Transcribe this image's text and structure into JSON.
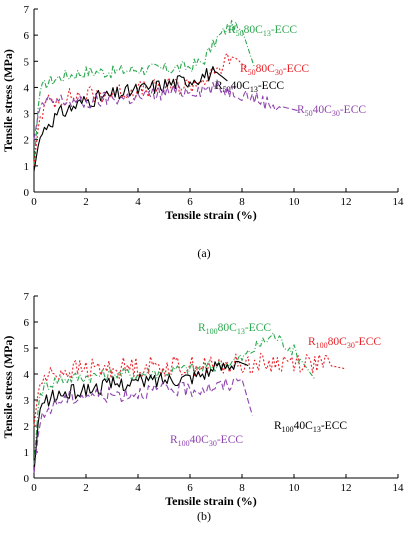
{
  "chart_data": [
    {
      "type": "line",
      "panel_label": "(a)",
      "xlabel": "Tensile strain (%)",
      "ylabel": "Tensile stress (MPa)",
      "xlim": [
        0,
        14
      ],
      "ylim": [
        0,
        7
      ],
      "xticks": [
        0,
        2,
        4,
        6,
        8,
        10,
        12,
        14
      ],
      "yticks": [
        0,
        1,
        2,
        3,
        4,
        5,
        6,
        7
      ],
      "grid": false,
      "series": [
        {
          "name_parts": [
            "R",
            "50",
            "80C",
            "13",
            "-ECC"
          ],
          "color": "#2ca84f",
          "dash": "5,2,1,2",
          "x": [
            0,
            0.2,
            0.5,
            1,
            2,
            3,
            4,
            5,
            6,
            6.5,
            7,
            7.5,
            8,
            8.5
          ],
          "y": [
            1.0,
            3.8,
            4.2,
            4.4,
            4.6,
            4.6,
            4.7,
            4.7,
            4.8,
            5.0,
            5.8,
            6.35,
            6.2,
            4.7
          ],
          "noise": 0.25
        },
        {
          "name_parts": [
            "R",
            "50",
            "80C",
            "30",
            "-ECC"
          ],
          "color": "#e8232a",
          "dash": "2,2",
          "x": [
            0,
            0.2,
            0.5,
            1,
            2,
            3,
            4,
            5,
            6,
            7,
            7.5,
            7.8,
            8.2
          ],
          "y": [
            1.0,
            2.8,
            3.4,
            3.6,
            3.7,
            3.8,
            3.9,
            4.0,
            4.1,
            4.5,
            5.2,
            5.1,
            4.7
          ],
          "noise": 0.35
        },
        {
          "name_parts": [
            "R",
            "50",
            "40C",
            "13",
            "-ECC"
          ],
          "color": "#000000",
          "dash": "",
          "x": [
            0,
            0.2,
            0.5,
            1,
            2,
            3,
            4,
            5,
            6,
            7,
            7.5
          ],
          "y": [
            0.8,
            2.0,
            2.6,
            3.0,
            3.5,
            3.7,
            3.9,
            4.1,
            4.3,
            4.6,
            4.2
          ],
          "noise": 0.3
        },
        {
          "name_parts": [
            "R",
            "50",
            "40C",
            "30",
            "-ECC"
          ],
          "color": "#8e44ad",
          "dash": "6,3",
          "x": [
            0,
            0.2,
            0.5,
            1,
            2,
            3,
            4,
            5,
            6,
            7,
            8,
            9,
            10.2
          ],
          "y": [
            2.0,
            3.2,
            3.4,
            3.5,
            3.4,
            3.6,
            3.6,
            3.8,
            3.9,
            4.0,
            3.8,
            3.4,
            3.1
          ],
          "noise": 0.3
        }
      ]
    },
    {
      "type": "line",
      "panel_label": "(b)",
      "xlabel": "Tensile strain (%)",
      "ylabel": "Tensile stress (MPa)",
      "xlim": [
        0,
        14
      ],
      "ylim": [
        0,
        7
      ],
      "xticks": [
        0,
        2,
        4,
        6,
        8,
        10,
        12,
        14
      ],
      "yticks": [
        0,
        1,
        2,
        3,
        4,
        5,
        6,
        7
      ],
      "grid": false,
      "series": [
        {
          "name_parts": [
            "R",
            "100",
            "80C",
            "13",
            "-ECC"
          ],
          "color": "#2ca84f",
          "dash": "5,2,1,2",
          "x": [
            0,
            0.2,
            0.5,
            1,
            2,
            3,
            4,
            5,
            6,
            7,
            8,
            8.5,
            9.2,
            10,
            10.8
          ],
          "y": [
            0.5,
            3.2,
            3.6,
            3.8,
            3.9,
            4.0,
            4.0,
            4.1,
            4.2,
            4.3,
            4.6,
            5.0,
            5.5,
            4.9,
            3.8
          ],
          "noise": 0.25
        },
        {
          "name_parts": [
            "R",
            "100",
            "80C",
            "30",
            "-ECC"
          ],
          "color": "#e8232a",
          "dash": "2,2",
          "x": [
            0,
            0.2,
            0.5,
            1,
            2,
            3,
            4,
            5,
            6,
            7,
            8,
            9,
            10,
            11,
            12
          ],
          "y": [
            2.0,
            3.6,
            3.9,
            4.1,
            4.2,
            4.2,
            4.3,
            4.3,
            4.3,
            4.3,
            4.4,
            4.4,
            4.5,
            4.4,
            4.2
          ],
          "noise": 0.4
        },
        {
          "name_parts": [
            "R",
            "100",
            "40C",
            "13",
            "-ECC"
          ],
          "color": "#000000",
          "dash": "",
          "x": [
            0,
            0.2,
            0.5,
            1,
            2,
            3,
            4,
            5,
            6,
            7,
            7.8,
            8.3
          ],
          "y": [
            0.2,
            2.6,
            3.0,
            3.2,
            3.4,
            3.6,
            3.7,
            3.8,
            3.9,
            4.2,
            4.5,
            4.3
          ],
          "noise": 0.3
        },
        {
          "name_parts": [
            "R",
            "100",
            "40C",
            "30",
            "-ECC"
          ],
          "color": "#8e44ad",
          "dash": "6,3",
          "x": [
            0,
            0.2,
            0.5,
            1,
            2,
            3,
            4,
            5,
            6,
            7,
            7.5,
            8.0,
            8.4
          ],
          "y": [
            0.2,
            2.0,
            2.6,
            3.0,
            3.2,
            3.2,
            3.3,
            3.4,
            3.4,
            3.5,
            3.6,
            3.8,
            2.4
          ],
          "noise": 0.3
        }
      ]
    }
  ]
}
